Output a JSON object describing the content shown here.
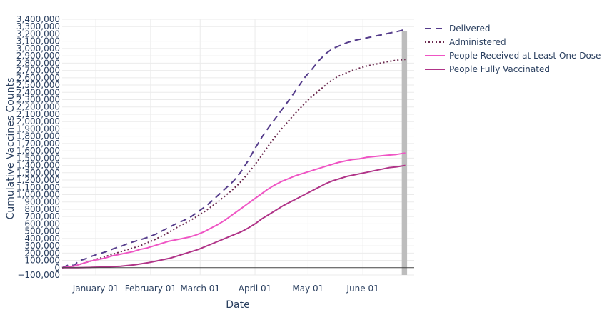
{
  "chart_data": {
    "type": "line",
    "title": "",
    "xlabel": "Date",
    "ylabel": "Cumulative Vaccines Counts",
    "ylim": [
      -100000,
      3400000
    ],
    "xlim": [
      "2020-12-13",
      "2021-06-30"
    ],
    "x_ticks": [
      {
        "date": "2021-01-01",
        "label": "January 01"
      },
      {
        "date": "2021-02-01",
        "label": "February 01"
      },
      {
        "date": "2021-03-01",
        "label": "March 01"
      },
      {
        "date": "2021-04-01",
        "label": "April 01"
      },
      {
        "date": "2021-05-01",
        "label": "May 01"
      },
      {
        "date": "2021-06-01",
        "label": "June 01"
      }
    ],
    "y_ticks": [
      -100000,
      0,
      100000,
      200000,
      300000,
      400000,
      500000,
      600000,
      700000,
      800000,
      900000,
      1000000,
      1100000,
      1200000,
      1300000,
      1400000,
      1500000,
      1600000,
      1700000,
      1800000,
      1900000,
      2000000,
      2100000,
      2200000,
      2300000,
      2400000,
      2500000,
      2600000,
      2700000,
      2800000,
      2900000,
      3000000,
      3100000,
      3200000,
      3300000,
      3400000
    ],
    "y_tick_labels": [
      "−100,000",
      "0",
      "100,000",
      "200,000",
      "300,000",
      "400,000",
      "500,000",
      "600,000",
      "700,000",
      "800,000",
      "900,000",
      "1,000,000",
      "1,100,000",
      "1,200,000",
      "1,300,000",
      "1,400,000",
      "1,500,000",
      "1,600,000",
      "1,700,000",
      "1,800,000",
      "1,900,000",
      "2,000,000",
      "2,100,000",
      "2,200,000",
      "2,300,000",
      "2,400,000",
      "2,500,000",
      "2,600,000",
      "2,700,000",
      "2,800,000",
      "2,900,000",
      "3,000,000",
      "3,100,000",
      "3,200,000",
      "3,300,000",
      "3,400,000"
    ],
    "grid": true,
    "legend_position": "right",
    "series": [
      {
        "name": "Delivered",
        "color": "#553c8b",
        "dash": "dash",
        "points": [
          [
            "2020-12-13",
            0
          ],
          [
            "2020-12-17",
            40000
          ],
          [
            "2020-12-20",
            30000
          ],
          [
            "2020-12-22",
            90000
          ],
          [
            "2020-12-26",
            120000
          ],
          [
            "2020-12-30",
            160000
          ],
          [
            "2021-01-03",
            190000
          ],
          [
            "2021-01-07",
            220000
          ],
          [
            "2021-01-11",
            260000
          ],
          [
            "2021-01-15",
            290000
          ],
          [
            "2021-01-19",
            330000
          ],
          [
            "2021-01-23",
            360000
          ],
          [
            "2021-01-27",
            390000
          ],
          [
            "2021-01-31",
            420000
          ],
          [
            "2021-02-04",
            460000
          ],
          [
            "2021-02-08",
            510000
          ],
          [
            "2021-02-12",
            560000
          ],
          [
            "2021-02-16",
            610000
          ],
          [
            "2021-02-20",
            650000
          ],
          [
            "2021-02-24",
            700000
          ],
          [
            "2021-02-28",
            770000
          ],
          [
            "2021-03-04",
            840000
          ],
          [
            "2021-03-08",
            920000
          ],
          [
            "2021-03-12",
            1010000
          ],
          [
            "2021-03-16",
            1100000
          ],
          [
            "2021-03-20",
            1190000
          ],
          [
            "2021-03-24",
            1310000
          ],
          [
            "2021-03-28",
            1460000
          ],
          [
            "2021-04-01",
            1630000
          ],
          [
            "2021-04-05",
            1790000
          ],
          [
            "2021-04-09",
            1930000
          ],
          [
            "2021-04-13",
            2060000
          ],
          [
            "2021-04-17",
            2190000
          ],
          [
            "2021-04-21",
            2320000
          ],
          [
            "2021-04-25",
            2460000
          ],
          [
            "2021-04-29",
            2600000
          ],
          [
            "2021-05-03",
            2710000
          ],
          [
            "2021-05-07",
            2830000
          ],
          [
            "2021-05-11",
            2930000
          ],
          [
            "2021-05-15",
            3000000
          ],
          [
            "2021-05-19",
            3040000
          ],
          [
            "2021-05-23",
            3080000
          ],
          [
            "2021-05-27",
            3110000
          ],
          [
            "2021-05-31",
            3130000
          ],
          [
            "2021-06-04",
            3150000
          ],
          [
            "2021-06-08",
            3170000
          ],
          [
            "2021-06-12",
            3190000
          ],
          [
            "2021-06-16",
            3210000
          ],
          [
            "2021-06-20",
            3230000
          ],
          [
            "2021-06-25",
            3260000
          ]
        ]
      },
      {
        "name": "Administered",
        "color": "#6b2a4f",
        "dash": "dot",
        "points": [
          [
            "2020-12-13",
            0
          ],
          [
            "2020-12-17",
            10000
          ],
          [
            "2020-12-21",
            30000
          ],
          [
            "2020-12-25",
            60000
          ],
          [
            "2020-12-29",
            90000
          ],
          [
            "2021-01-02",
            120000
          ],
          [
            "2021-01-06",
            150000
          ],
          [
            "2021-01-10",
            180000
          ],
          [
            "2021-01-14",
            210000
          ],
          [
            "2021-01-18",
            240000
          ],
          [
            "2021-01-22",
            270000
          ],
          [
            "2021-01-26",
            300000
          ],
          [
            "2021-01-30",
            340000
          ],
          [
            "2021-02-03",
            380000
          ],
          [
            "2021-02-07",
            430000
          ],
          [
            "2021-02-11",
            480000
          ],
          [
            "2021-02-15",
            540000
          ],
          [
            "2021-02-19",
            590000
          ],
          [
            "2021-02-23",
            640000
          ],
          [
            "2021-02-27",
            700000
          ],
          [
            "2021-03-03",
            760000
          ],
          [
            "2021-03-07",
            830000
          ],
          [
            "2021-03-11",
            900000
          ],
          [
            "2021-03-15",
            980000
          ],
          [
            "2021-03-19",
            1060000
          ],
          [
            "2021-03-23",
            1150000
          ],
          [
            "2021-03-27",
            1260000
          ],
          [
            "2021-03-31",
            1380000
          ],
          [
            "2021-04-04",
            1510000
          ],
          [
            "2021-04-08",
            1650000
          ],
          [
            "2021-04-12",
            1780000
          ],
          [
            "2021-04-16",
            1900000
          ],
          [
            "2021-04-20",
            2010000
          ],
          [
            "2021-04-24",
            2120000
          ],
          [
            "2021-04-28",
            2220000
          ],
          [
            "2021-05-02",
            2320000
          ],
          [
            "2021-05-06",
            2400000
          ],
          [
            "2021-05-10",
            2480000
          ],
          [
            "2021-05-14",
            2560000
          ],
          [
            "2021-05-18",
            2620000
          ],
          [
            "2021-05-22",
            2660000
          ],
          [
            "2021-05-26",
            2700000
          ],
          [
            "2021-05-30",
            2730000
          ],
          [
            "2021-06-03",
            2760000
          ],
          [
            "2021-06-07",
            2780000
          ],
          [
            "2021-06-11",
            2800000
          ],
          [
            "2021-06-15",
            2820000
          ],
          [
            "2021-06-20",
            2840000
          ],
          [
            "2021-06-25",
            2850000
          ]
        ]
      },
      {
        "name": "People Received at Least One Dose",
        "color": "#ef55c4",
        "dash": "solid",
        "points": [
          [
            "2020-12-13",
            0
          ],
          [
            "2020-12-17",
            10000
          ],
          [
            "2020-12-21",
            30000
          ],
          [
            "2020-12-25",
            60000
          ],
          [
            "2020-12-29",
            90000
          ],
          [
            "2021-01-02",
            110000
          ],
          [
            "2021-01-06",
            130000
          ],
          [
            "2021-01-10",
            160000
          ],
          [
            "2021-01-14",
            180000
          ],
          [
            "2021-01-18",
            200000
          ],
          [
            "2021-01-22",
            220000
          ],
          [
            "2021-01-26",
            250000
          ],
          [
            "2021-01-30",
            270000
          ],
          [
            "2021-02-03",
            300000
          ],
          [
            "2021-02-07",
            330000
          ],
          [
            "2021-02-11",
            360000
          ],
          [
            "2021-02-15",
            380000
          ],
          [
            "2021-02-19",
            400000
          ],
          [
            "2021-02-23",
            420000
          ],
          [
            "2021-02-27",
            450000
          ],
          [
            "2021-03-03",
            490000
          ],
          [
            "2021-03-07",
            540000
          ],
          [
            "2021-03-11",
            590000
          ],
          [
            "2021-03-15",
            650000
          ],
          [
            "2021-03-19",
            720000
          ],
          [
            "2021-03-23",
            790000
          ],
          [
            "2021-03-27",
            860000
          ],
          [
            "2021-03-31",
            930000
          ],
          [
            "2021-04-04",
            1000000
          ],
          [
            "2021-04-08",
            1070000
          ],
          [
            "2021-04-12",
            1130000
          ],
          [
            "2021-04-16",
            1180000
          ],
          [
            "2021-04-20",
            1220000
          ],
          [
            "2021-04-24",
            1260000
          ],
          [
            "2021-04-28",
            1290000
          ],
          [
            "2021-05-02",
            1320000
          ],
          [
            "2021-05-06",
            1350000
          ],
          [
            "2021-05-10",
            1380000
          ],
          [
            "2021-05-14",
            1410000
          ],
          [
            "2021-05-18",
            1440000
          ],
          [
            "2021-05-22",
            1460000
          ],
          [
            "2021-05-26",
            1480000
          ],
          [
            "2021-05-30",
            1490000
          ],
          [
            "2021-06-03",
            1510000
          ],
          [
            "2021-06-07",
            1520000
          ],
          [
            "2021-06-11",
            1530000
          ],
          [
            "2021-06-15",
            1540000
          ],
          [
            "2021-06-20",
            1550000
          ],
          [
            "2021-06-25",
            1570000
          ]
        ]
      },
      {
        "name": "People Fully Vaccinated",
        "color": "#b03488",
        "dash": "solid",
        "points": [
          [
            "2020-12-13",
            0
          ],
          [
            "2020-12-22",
            0
          ],
          [
            "2020-12-30",
            5000
          ],
          [
            "2021-01-07",
            10000
          ],
          [
            "2021-01-15",
            20000
          ],
          [
            "2021-01-23",
            40000
          ],
          [
            "2021-01-31",
            70000
          ],
          [
            "2021-02-04",
            90000
          ],
          [
            "2021-02-08",
            110000
          ],
          [
            "2021-02-12",
            130000
          ],
          [
            "2021-02-16",
            160000
          ],
          [
            "2021-02-20",
            190000
          ],
          [
            "2021-02-24",
            220000
          ],
          [
            "2021-02-28",
            250000
          ],
          [
            "2021-03-04",
            290000
          ],
          [
            "2021-03-08",
            330000
          ],
          [
            "2021-03-12",
            370000
          ],
          [
            "2021-03-16",
            410000
          ],
          [
            "2021-03-20",
            450000
          ],
          [
            "2021-03-24",
            490000
          ],
          [
            "2021-03-28",
            540000
          ],
          [
            "2021-04-01",
            600000
          ],
          [
            "2021-04-05",
            670000
          ],
          [
            "2021-04-09",
            730000
          ],
          [
            "2021-04-13",
            790000
          ],
          [
            "2021-04-17",
            850000
          ],
          [
            "2021-04-21",
            900000
          ],
          [
            "2021-04-25",
            950000
          ],
          [
            "2021-04-29",
            1000000
          ],
          [
            "2021-05-03",
            1050000
          ],
          [
            "2021-05-07",
            1100000
          ],
          [
            "2021-05-11",
            1150000
          ],
          [
            "2021-05-15",
            1190000
          ],
          [
            "2021-05-19",
            1220000
          ],
          [
            "2021-05-23",
            1250000
          ],
          [
            "2021-05-27",
            1270000
          ],
          [
            "2021-05-31",
            1290000
          ],
          [
            "2021-06-04",
            1310000
          ],
          [
            "2021-06-08",
            1330000
          ],
          [
            "2021-06-12",
            1350000
          ],
          [
            "2021-06-16",
            1370000
          ],
          [
            "2021-06-20",
            1380000
          ],
          [
            "2021-06-25",
            1400000
          ]
        ]
      }
    ],
    "highlight_band": {
      "x0": "2021-06-23",
      "x1": "2021-06-26",
      "color": "#bdbdbd"
    }
  }
}
